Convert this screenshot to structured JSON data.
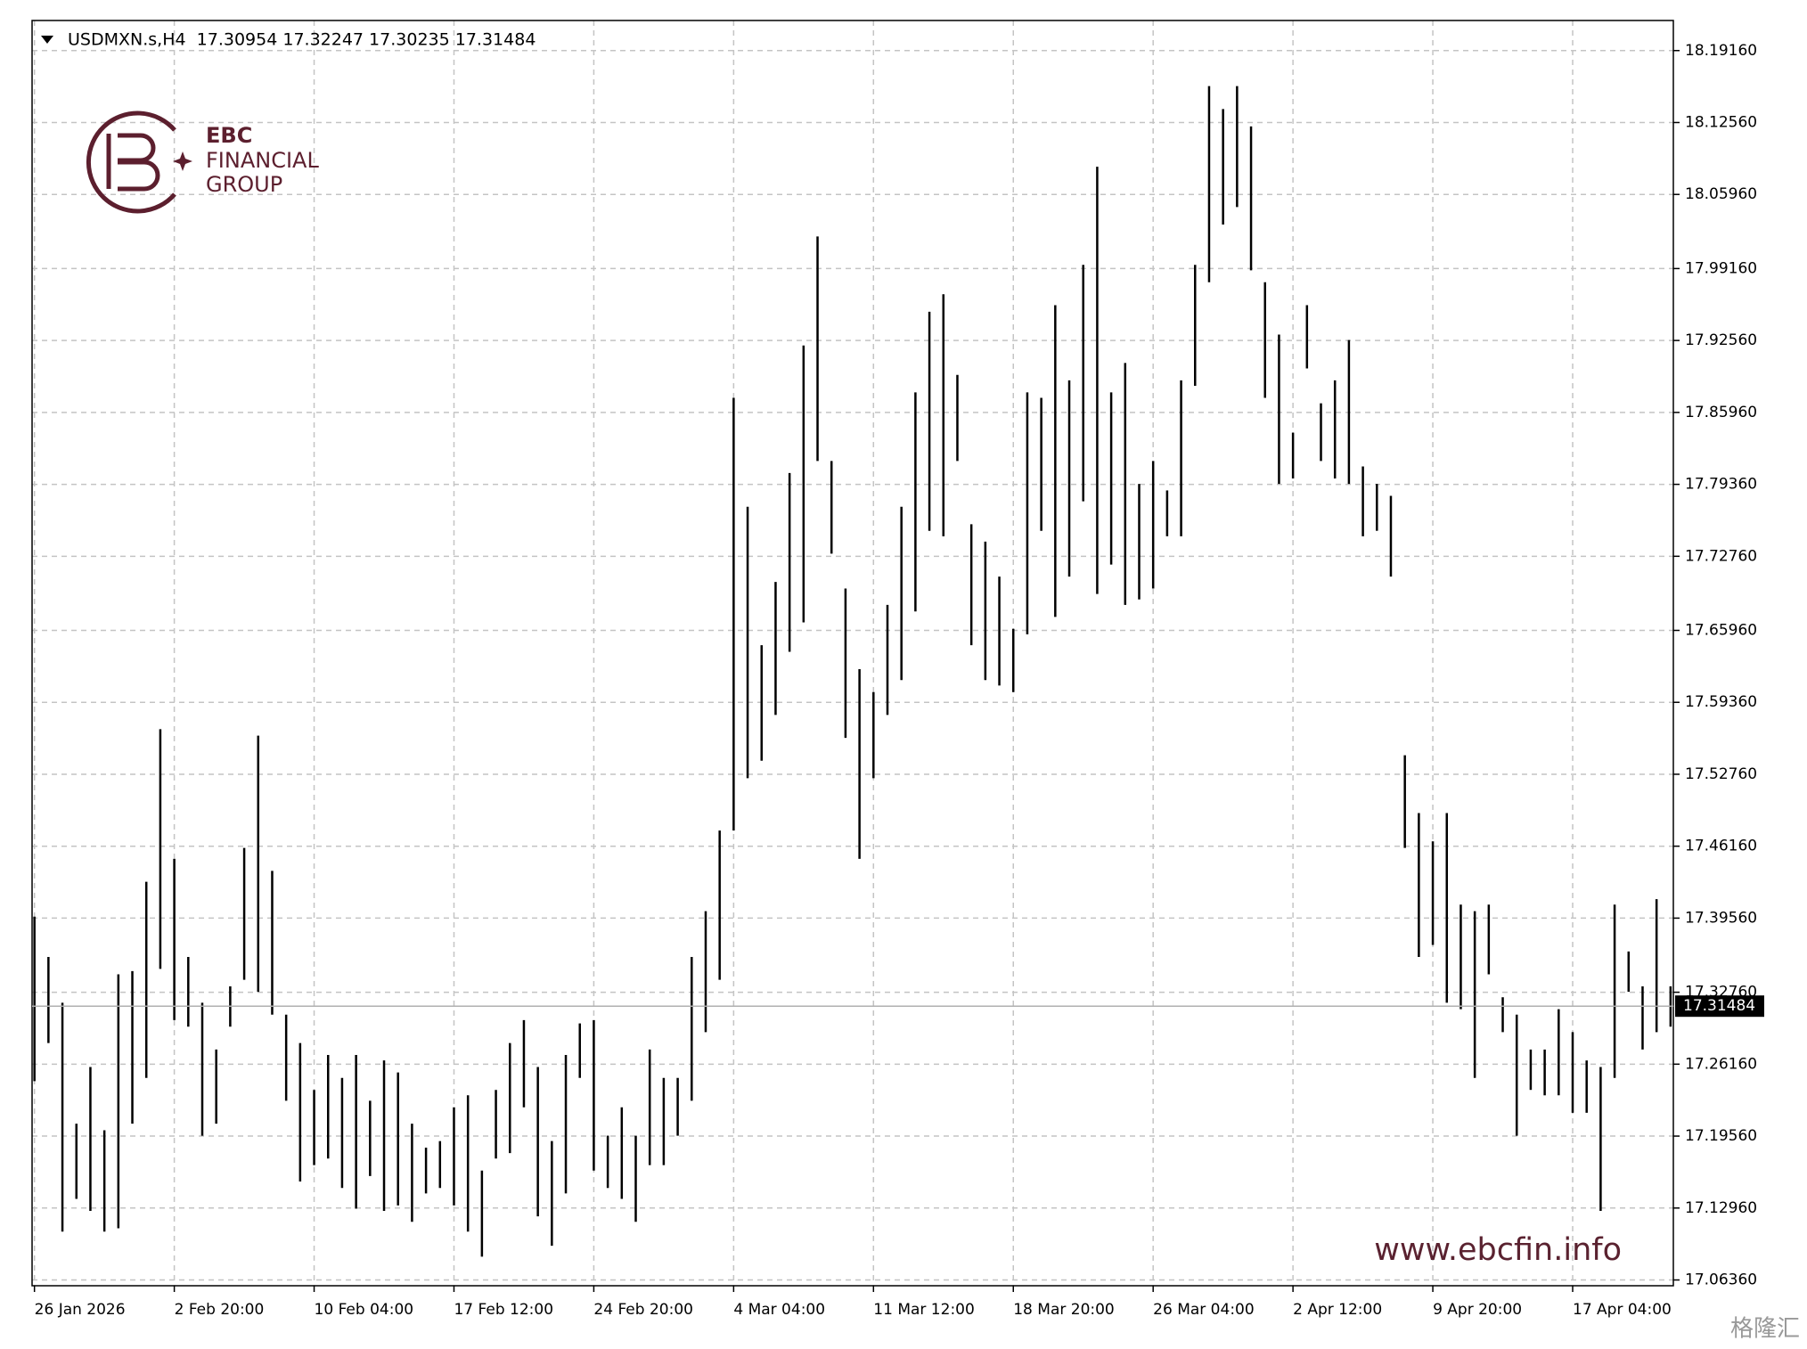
{
  "chart_data": {
    "type": "hilo",
    "title": "USDMXN.s,H4  17.30954 17.32247 17.30235 17.31484",
    "logo_text": [
      "EBC",
      "FINANCIAL",
      "GROUP"
    ],
    "watermark_url": "www.ebcfin.info",
    "corner_watermark": "格隆汇",
    "color": "#000000",
    "grid": true,
    "current_price": 17.31484,
    "xlim": [
      -0.17,
      117.2
    ],
    "xticks": [
      {
        "value": 0,
        "label": "26 Jan 2026"
      },
      {
        "value": 10,
        "label": "2 Feb 20:00"
      },
      {
        "value": 20,
        "label": "10 Feb 04:00"
      },
      {
        "value": 30,
        "label": "17 Feb 12:00"
      },
      {
        "value": 40,
        "label": "24 Feb 20:00"
      },
      {
        "value": 50,
        "label": "4 Mar 04:00"
      },
      {
        "value": 60,
        "label": "11 Mar 12:00"
      },
      {
        "value": 70,
        "label": "18 Mar 20:00"
      },
      {
        "value": 80,
        "label": "26 Mar 04:00"
      },
      {
        "value": 90,
        "label": "2 Apr 12:00"
      },
      {
        "value": 100,
        "label": "9 Apr 20:00"
      },
      {
        "value": 110,
        "label": "17 Apr 04:00"
      }
    ],
    "ylim": [
      17.0583,
      18.2192
    ],
    "yticks": [
      {
        "value": 18.1916,
        "label": "18.19160"
      },
      {
        "value": 18.1256,
        "label": "18.12560"
      },
      {
        "value": 18.0596,
        "label": "18.05960"
      },
      {
        "value": 17.9916,
        "label": "17.99160"
      },
      {
        "value": 17.9256,
        "label": "17.92560"
      },
      {
        "value": 17.8596,
        "label": "17.85960"
      },
      {
        "value": 17.7936,
        "label": "17.79360"
      },
      {
        "value": 17.7276,
        "label": "17.72760"
      },
      {
        "value": 17.6596,
        "label": "17.65960"
      },
      {
        "value": 17.5936,
        "label": "17.59360"
      },
      {
        "value": 17.5276,
        "label": "17.52760"
      },
      {
        "value": 17.4616,
        "label": "17.46160"
      },
      {
        "value": 17.3956,
        "label": "17.39560"
      },
      {
        "value": 17.3276,
        "label": "17.32760"
      },
      {
        "value": 17.2616,
        "label": "17.26160"
      },
      {
        "value": 17.1956,
        "label": "17.19560"
      },
      {
        "value": 17.1296,
        "label": "17.12960"
      },
      {
        "value": 17.0636,
        "label": "17.06360"
      }
    ],
    "high": [
      17.397,
      17.36,
      17.318,
      17.207,
      17.259,
      17.201,
      17.344,
      17.347,
      17.429,
      17.569,
      17.45,
      17.36,
      17.318,
      17.275,
      17.333,
      17.46,
      17.563,
      17.439,
      17.307,
      17.281,
      17.238,
      17.27,
      17.249,
      17.27,
      17.228,
      17.265,
      17.254,
      17.207,
      17.185,
      17.191,
      17.222,
      17.233,
      17.164,
      17.238,
      17.281,
      17.302,
      17.259,
      17.191,
      17.27,
      17.299,
      17.302,
      17.196,
      17.222,
      17.196,
      17.275,
      17.249,
      17.249,
      17.36,
      17.402,
      17.476,
      17.873,
      17.773,
      17.646,
      17.704,
      17.804,
      17.921,
      18.021,
      17.815,
      17.698,
      17.624,
      17.603,
      17.683,
      17.773,
      17.878,
      17.952,
      17.968,
      17.894,
      17.757,
      17.741,
      17.709,
      17.661,
      17.878,
      17.873,
      17.958,
      17.889,
      17.995,
      18.085,
      17.878,
      17.905,
      17.794,
      17.815,
      17.788,
      17.889,
      17.995,
      18.159,
      18.138,
      18.159,
      18.122,
      17.979,
      17.931,
      17.841,
      17.958,
      17.868,
      17.889,
      17.926,
      17.81,
      17.794,
      17.783,
      17.545,
      17.492,
      17.466,
      17.492,
      17.408,
      17.402,
      17.408,
      17.323,
      17.307,
      17.275,
      17.275,
      17.312,
      17.291,
      17.265,
      17.259,
      17.408,
      17.365,
      17.333,
      17.413,
      17.333
    ],
    "low": [
      17.246,
      17.281,
      17.108,
      17.138,
      17.127,
      17.108,
      17.111,
      17.207,
      17.249,
      17.349,
      17.302,
      17.296,
      17.196,
      17.207,
      17.296,
      17.339,
      17.328,
      17.307,
      17.228,
      17.154,
      17.169,
      17.175,
      17.148,
      17.129,
      17.159,
      17.127,
      17.132,
      17.117,
      17.143,
      17.148,
      17.132,
      17.108,
      17.085,
      17.175,
      17.18,
      17.222,
      17.122,
      17.095,
      17.143,
      17.249,
      17.164,
      17.148,
      17.138,
      17.117,
      17.169,
      17.169,
      17.196,
      17.228,
      17.291,
      17.339,
      17.476,
      17.524,
      17.54,
      17.582,
      17.64,
      17.667,
      17.815,
      17.73,
      17.561,
      17.45,
      17.524,
      17.582,
      17.614,
      17.677,
      17.751,
      17.746,
      17.815,
      17.646,
      17.614,
      17.609,
      17.603,
      17.656,
      17.751,
      17.672,
      17.709,
      17.778,
      17.693,
      17.72,
      17.683,
      17.688,
      17.698,
      17.746,
      17.746,
      17.884,
      17.979,
      18.032,
      18.048,
      17.99,
      17.873,
      17.794,
      17.799,
      17.9,
      17.815,
      17.799,
      17.794,
      17.746,
      17.751,
      17.709,
      17.46,
      17.36,
      17.371,
      17.318,
      17.312,
      17.249,
      17.344,
      17.291,
      17.196,
      17.238,
      17.233,
      17.233,
      17.217,
      17.217,
      17.127,
      17.249,
      17.328,
      17.275,
      17.291,
      17.296
    ]
  }
}
